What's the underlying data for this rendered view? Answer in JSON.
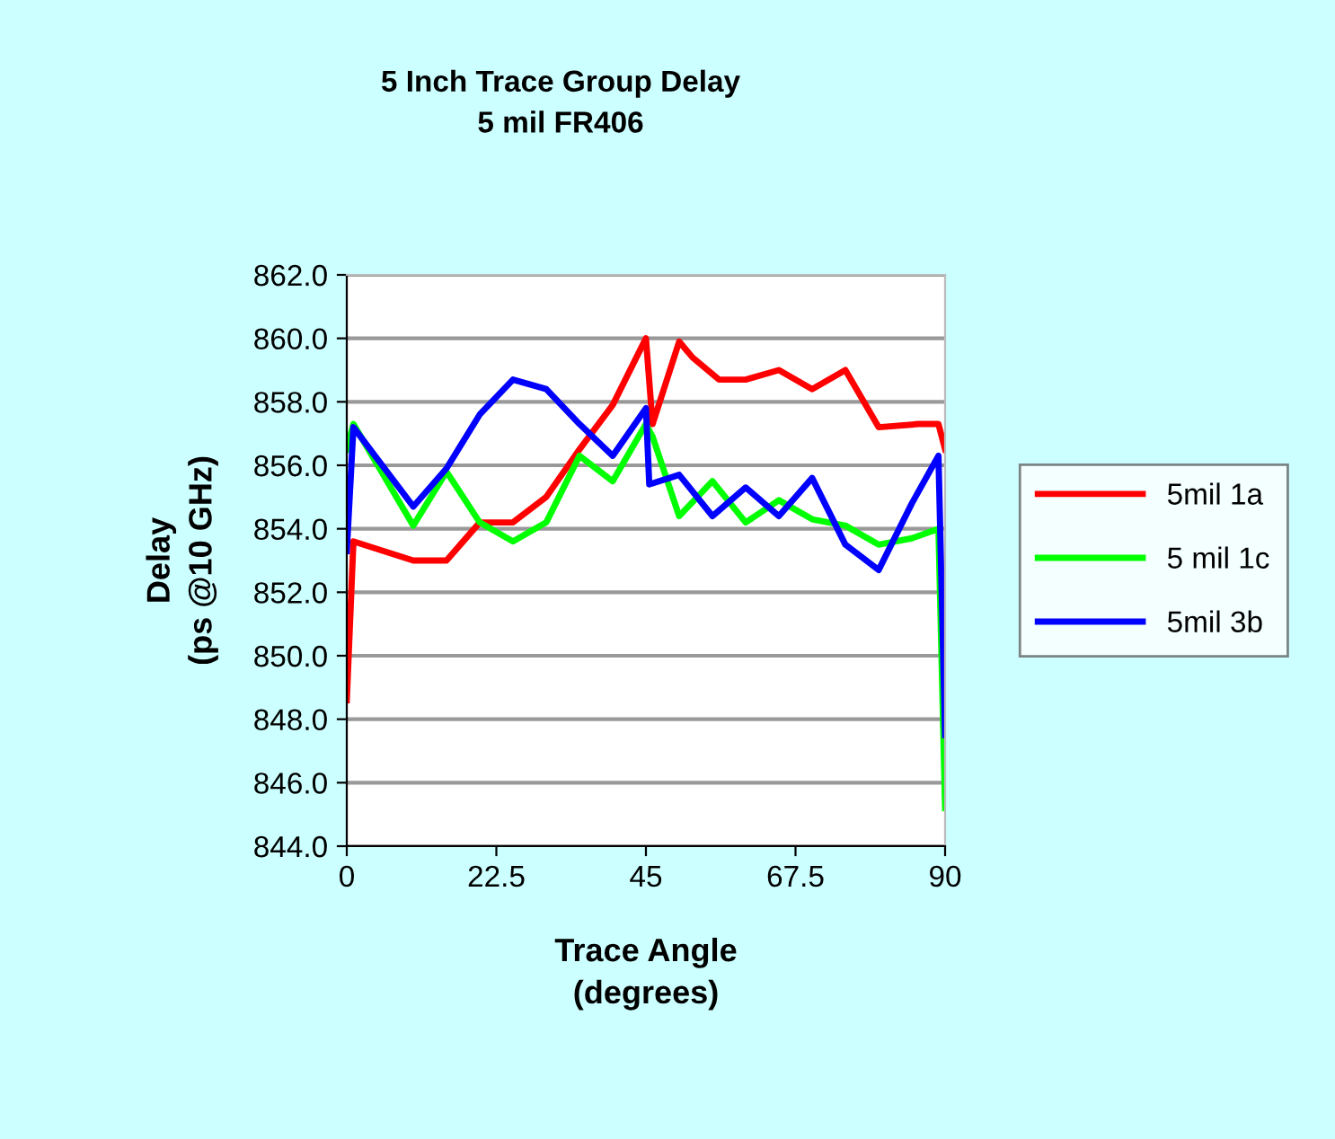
{
  "chart_data": {
    "type": "line",
    "title": "5 Inch Trace Group Delay\n5 mil FR406",
    "xlabel": "Trace Angle\n(degrees)",
    "ylabel": "Delay\n(ps @10 GHz)",
    "xlim": [
      0,
      90
    ],
    "xticks": [
      0,
      {
        "value": 22.5,
        "label": "22.5"
      },
      45,
      {
        "value": 67.5,
        "label": "67.5"
      },
      90
    ],
    "ylim": [
      844,
      862
    ],
    "yticks": [
      {
        "value": 844,
        "label": "844.0"
      },
      {
        "value": 846,
        "label": "846.0"
      },
      {
        "value": 848,
        "label": "848.0"
      },
      {
        "value": 850,
        "label": "850.0"
      },
      {
        "value": 852,
        "label": "852.0"
      },
      {
        "value": 854,
        "label": "854.0"
      },
      {
        "value": 856,
        "label": "856.0"
      },
      {
        "value": 858,
        "label": "858.0"
      },
      {
        "value": 860,
        "label": "860.0"
      },
      {
        "value": 862,
        "label": "862.0"
      }
    ],
    "grid": "y",
    "legend": "right",
    "marker": "none",
    "line_style": "solid",
    "series": [
      {
        "name": "5mil 1a",
        "color": "#ff0000",
        "x": [
          0,
          1,
          10,
          15,
          20,
          25,
          30,
          35,
          40,
          45,
          46,
          50,
          52,
          56,
          60,
          65,
          70,
          75,
          80,
          86,
          89,
          90
        ],
        "values": [
          848.6,
          853.6,
          853.0,
          853.0,
          854.2,
          854.2,
          855.0,
          856.5,
          857.9,
          860.0,
          857.3,
          859.9,
          859.4,
          858.7,
          858.7,
          859.0,
          858.4,
          859.0,
          857.2,
          857.3,
          857.3,
          856.5
        ]
      },
      {
        "name": "5 mil 1c",
        "color": "#00ff00",
        "x": [
          0,
          1,
          10,
          15,
          20,
          25,
          30,
          35,
          40,
          45,
          46,
          50,
          55,
          60,
          65,
          70,
          75,
          80,
          85,
          89,
          90
        ],
        "values": [
          856.5,
          857.3,
          854.1,
          855.8,
          854.2,
          853.6,
          854.2,
          856.3,
          855.5,
          857.3,
          856.9,
          854.4,
          855.5,
          854.2,
          854.9,
          854.3,
          854.1,
          853.5,
          853.7,
          854.0,
          845.2
        ]
      },
      {
        "name": "5mil 3b",
        "color": "#0000ff",
        "x": [
          0,
          1,
          10,
          15,
          20,
          25,
          30,
          35,
          40,
          45,
          45.5,
          50,
          55,
          60,
          65,
          70,
          75,
          80,
          85,
          89,
          90
        ],
        "values": [
          853.3,
          857.2,
          854.7,
          855.9,
          857.6,
          858.7,
          858.4,
          857.3,
          856.3,
          857.8,
          855.4,
          855.7,
          854.4,
          855.3,
          854.4,
          855.6,
          853.5,
          852.7,
          854.8,
          856.3,
          847.5
        ]
      }
    ]
  }
}
